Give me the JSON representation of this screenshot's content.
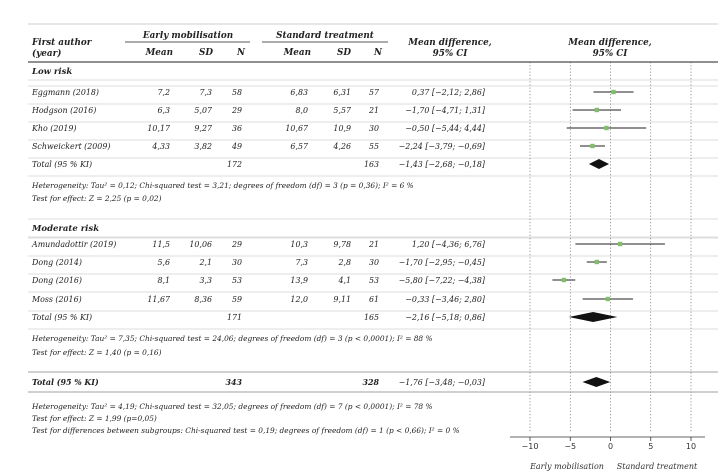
{
  "headers": {
    "author": "First author",
    "year": "(year)",
    "early": "Early mobilisation",
    "standard": "Standard treatment",
    "mean": "Mean",
    "sd": "SD",
    "n": "N",
    "md": "Mean difference,",
    "ci": "95% CI",
    "plot_md": "Mean difference,",
    "plot_ci": "95% CI"
  },
  "chart_data": {
    "type": "forest",
    "x_ticks": [
      "−10",
      "−5",
      "0",
      "5",
      "10"
    ],
    "xlim": [
      -10,
      10
    ],
    "left_direction": "Early mobilisation",
    "right_direction": "Standard treatment",
    "subgroups": [
      {
        "label": "Low risk",
        "studies": [
          {
            "author": "Eggmann (2018)",
            "e_mean": "7,2",
            "e_sd": "7,3",
            "e_n": "58",
            "s_mean": "6,83",
            "s_sd": "6,31",
            "s_n": "57",
            "ci_text": "0,37 [−2,12; 2,86]",
            "md": 0.37,
            "lo": -2.12,
            "hi": 2.86
          },
          {
            "author": "Hodgson (2016)",
            "e_mean": "6,3",
            "e_sd": "5,07",
            "e_n": "29",
            "s_mean": "8,0",
            "s_sd": "5,57",
            "s_n": "21",
            "ci_text": "−1,70 [−4,71; 1,31]",
            "md": -1.7,
            "lo": -4.71,
            "hi": 1.31
          },
          {
            "author": "Kho (2019)",
            "e_mean": "10,17",
            "e_sd": "9,27",
            "e_n": "36",
            "s_mean": "10,67",
            "s_sd": "10,9",
            "s_n": "30",
            "ci_text": "−0,50 [−5,44; 4,44]",
            "md": -0.5,
            "lo": -5.44,
            "hi": 4.44
          },
          {
            "author": "Schweickert (2009)",
            "e_mean": "4,33",
            "e_sd": "3,82",
            "e_n": "49",
            "s_mean": "6,57",
            "s_sd": "4,26",
            "s_n": "55",
            "ci_text": "−2,24 [−3,79; −0,69]",
            "md": -2.24,
            "lo": -3.79,
            "hi": -0.69
          }
        ],
        "total": {
          "label": "Total  (95 % KI)",
          "e_n": "172",
          "s_n": "163",
          "ci_text": "−1,43 [−2,68; −0,18]",
          "md": -1.43,
          "lo": -2.68,
          "hi": -0.18
        },
        "heterogeneity": "Heterogeneity: Tau² = 0,12; Chi-squared test = 3,21; degrees of freedom (df) = 3 (p = 0,36); I² = 6 %",
        "effect": "Test for effect: Z = 2,25 (p = 0,02)"
      },
      {
        "label": "Moderate risk",
        "studies": [
          {
            "author": "Amundadottir (2019)",
            "e_mean": "11,5",
            "e_sd": "10,06",
            "e_n": "29",
            "s_mean": "10,3",
            "s_sd": "9,78",
            "s_n": "21",
            "ci_text": "1,20 [−4,36; 6,76]",
            "md": 1.2,
            "lo": -4.36,
            "hi": 6.76
          },
          {
            "author": "Dong (2014)",
            "e_mean": "5,6",
            "e_sd": "2,1",
            "e_n": "30",
            "s_mean": "7,3",
            "s_sd": "2,8",
            "s_n": "30",
            "ci_text": "−1,70 [−2,95; −0,45]",
            "md": -1.7,
            "lo": -2.95,
            "hi": -0.45
          },
          {
            "author": "Dong (2016)",
            "e_mean": "8,1",
            "e_sd": "3,3",
            "e_n": "53",
            "s_mean": "13,9",
            "s_sd": "4,1",
            "s_n": "53",
            "ci_text": "−5,80 [−7,22; −4,38]",
            "md": -5.8,
            "lo": -7.22,
            "hi": -4.38
          },
          {
            "author": "Moss (2016)",
            "e_mean": "11,67",
            "e_sd": "8,36",
            "e_n": "59",
            "s_mean": "12,0",
            "s_sd": "9,11",
            "s_n": "61",
            "ci_text": "−0,33 [−3,46; 2,80]",
            "md": -0.33,
            "lo": -3.46,
            "hi": 2.8
          }
        ],
        "total": {
          "label": "Total  (95 % KI)",
          "e_n": "171",
          "s_n": "165",
          "ci_text": "−2,16 [−5,18; 0,86]",
          "md": -2.16,
          "lo": -5.18,
          "hi": 0.86
        },
        "heterogeneity": "Heterogeneity: Tau² = 7,35; Chi-squared test = 24,06; degrees of freedom (df) = 3 (p < 0,0001); I² = 88 %",
        "effect": "Test for effect: Z = 1,40 (p = 0,16)"
      }
    ],
    "overall": {
      "label": "Total  (95 % KI)",
      "e_n": "343",
      "s_n": "328",
      "ci_text": "−1,76 [−3,48; −0,03]",
      "md": -1.76,
      "lo": -3.48,
      "hi": -0.03,
      "heterogeneity": "Heterogeneity: Tau² = 4,19; Chi-squared test = 32,05; degrees of freedom (df) = 7 (p < 0,0001); I² = 78 %",
      "effect": "Test for effect: Z = 1,99 (p=0,05)",
      "subgroup_test": "Test for differences between subgroups: Chi-squared test = 0,19; degrees of freedom (df) = 1 (p < 0,66); I² = 0 %"
    },
    "colors": {
      "box": "#7fbf6a",
      "line": "#222222",
      "diamond": "#111111",
      "rule": "#999999"
    }
  }
}
